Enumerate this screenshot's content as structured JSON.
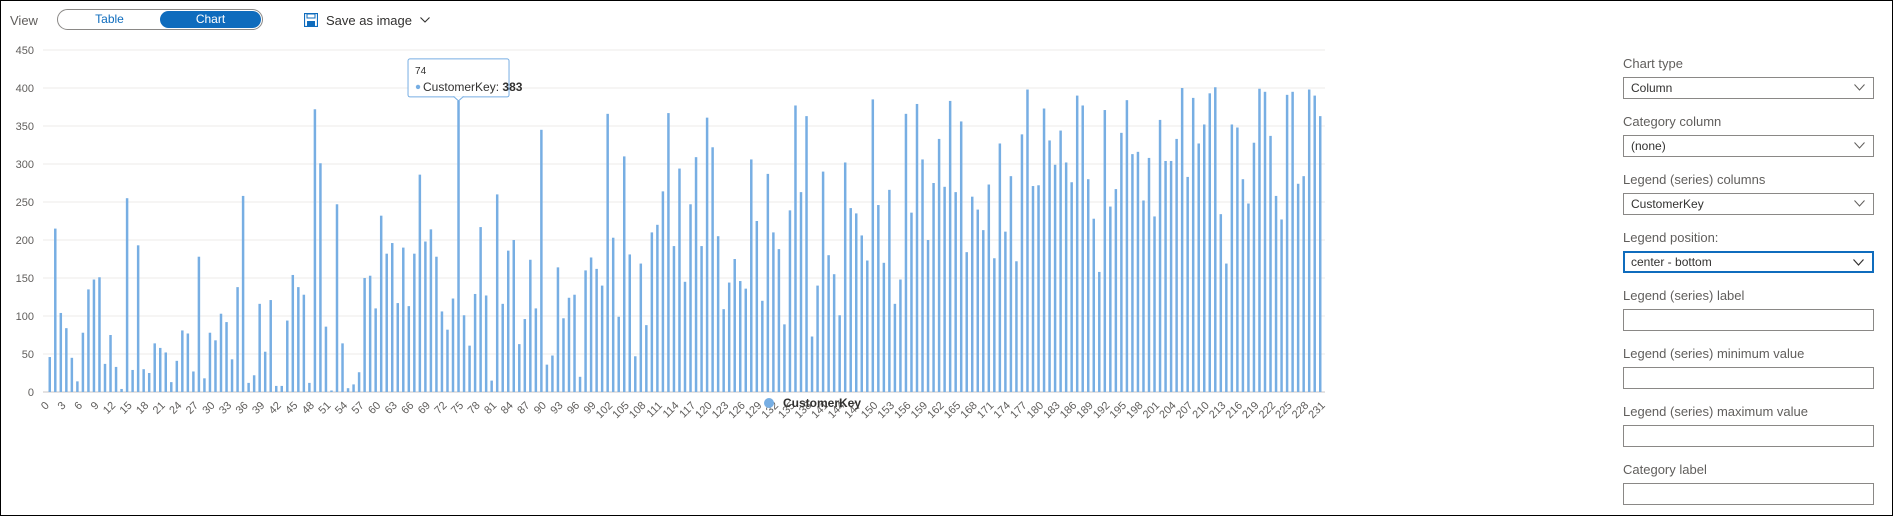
{
  "toolbar": {
    "view_label": "View",
    "tabs": [
      "Table",
      "Chart"
    ],
    "active_tab": "Chart",
    "save_label": "Save as image",
    "save_icon": "save-icon",
    "accent": "#0f6cbd"
  },
  "panel": {
    "chart_type_label": "Chart type",
    "chart_type_value": "Column",
    "category_column_label": "Category column",
    "category_column_value": "(none)",
    "legend_columns_label": "Legend (series) columns",
    "legend_columns_value": "CustomerKey",
    "legend_position_label": "Legend position:",
    "legend_position_value": "center - bottom",
    "legend_series_label_label": "Legend (series) label",
    "legend_min_label": "Legend (series) minimum value",
    "legend_max_label": "Legend (series) maximum value",
    "category_label_label": "Category label"
  },
  "tooltip": {
    "title": "74",
    "series": "CustomerKey",
    "value": "383"
  },
  "chart_data": {
    "type": "bar",
    "ylim": [
      0,
      450
    ],
    "yticks": [
      0,
      50,
      100,
      150,
      200,
      250,
      300,
      350,
      400,
      450
    ],
    "xtick_step": 3,
    "xlim": [
      0,
      231
    ],
    "legend_position": "bottom-center",
    "grid": true,
    "bar_color": "#77aee3",
    "series": [
      {
        "name": "CustomerKey",
        "values": [
          46,
          215,
          104,
          84,
          45,
          14,
          78,
          135,
          148,
          151,
          37,
          75,
          33,
          4,
          255,
          29,
          193,
          30,
          25,
          64,
          58,
          52,
          13,
          41,
          81,
          77,
          27,
          178,
          18,
          78,
          68,
          103,
          92,
          43,
          138,
          258,
          12,
          22,
          116,
          53,
          121,
          8,
          8,
          94,
          154,
          138,
          128,
          12,
          372,
          301,
          86,
          2,
          247,
          64,
          5,
          10,
          26,
          150,
          153,
          110,
          232,
          182,
          196,
          117,
          190,
          113,
          182,
          286,
          198,
          214,
          178,
          106,
          82,
          123,
          383,
          101,
          61,
          129,
          217,
          127,
          15,
          260,
          116,
          186,
          200,
          63,
          96,
          174,
          110,
          345,
          36,
          48,
          164,
          97,
          124,
          128,
          20,
          160,
          177,
          162,
          140,
          366,
          203,
          99,
          310,
          181,
          47,
          169,
          88,
          210,
          220,
          264,
          367,
          192,
          294,
          145,
          247,
          309,
          192,
          361,
          322,
          205,
          109,
          144,
          175,
          146,
          136,
          306,
          225,
          120,
          287,
          210,
          188,
          89,
          239,
          377,
          263,
          363,
          73,
          140,
          290,
          180,
          155,
          101,
          302,
          242,
          235,
          206,
          173,
          385,
          246,
          170,
          266,
          116,
          148,
          366,
          236,
          379,
          306,
          200,
          275,
          333,
          270,
          383,
          263,
          356,
          184,
          257,
          240,
          213,
          273,
          176,
          327,
          211,
          284,
          172,
          339,
          398,
          271,
          272,
          373,
          331,
          299,
          344,
          302,
          276,
          390,
          377,
          280,
          228,
          158,
          371,
          244,
          267,
          341,
          384,
          313,
          316,
          252,
          308,
          231,
          358,
          304,
          304,
          333,
          400,
          283,
          387,
          327,
          352,
          393,
          401,
          234,
          169,
          352,
          348,
          280,
          248,
          328,
          399,
          395,
          337,
          258,
          227,
          391,
          395,
          274,
          284,
          398,
          390,
          363
        ]
      }
    ]
  }
}
